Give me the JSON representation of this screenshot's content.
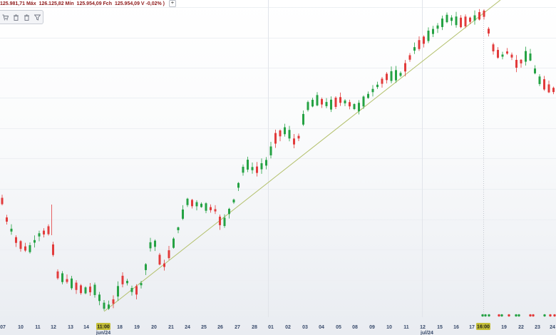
{
  "info_bar": {
    "text_1": "125.981,71 Máx",
    "text_2": "126.125,82 Mín",
    "text_3": "125.954,09 Fch",
    "text_4": "125.954,09 V -0,02% )",
    "plus_label": "+"
  },
  "toolbar": {
    "icons": [
      "cart-icon",
      "trash-icon",
      "trash-icon",
      "filter-icon"
    ]
  },
  "colors": {
    "up": "#25a244",
    "down": "#e23b3b",
    "trendline": "#b3c06b",
    "badge": "#c5bf38"
  },
  "x_axis": {
    "day_labels": [
      "07",
      "10",
      "11",
      "12",
      "13",
      "14",
      "11:00",
      "18",
      "19",
      "20",
      "21",
      "24",
      "25",
      "26",
      "27",
      "28",
      "01",
      "02",
      "03",
      "04",
      "05",
      "08",
      "09",
      "10",
      "11",
      "12",
      "15",
      "16",
      "17",
      "16:00",
      "19",
      "22",
      "23",
      "24"
    ],
    "month_labels": [
      "jun/24",
      "jul/24"
    ],
    "badge_labels": [
      "11:00",
      "16:00"
    ]
  },
  "chart_data": {
    "type": "candlestick",
    "title": "",
    "xlabel": "",
    "ylabel": "",
    "direction": [
      "down",
      "down",
      "up",
      "down",
      "down",
      "down",
      "up",
      "up",
      "up",
      "down",
      "down",
      "down",
      "down",
      "up",
      "down",
      "up",
      "down",
      "down",
      "up",
      "down",
      "up",
      "up",
      "up",
      "up",
      "down",
      "up",
      "down",
      "up",
      "up",
      "down",
      "up",
      "up",
      "up",
      "up",
      "down",
      "down",
      "down",
      "up",
      "up",
      "up",
      "up",
      "down",
      "up",
      "up",
      "up",
      "down",
      "down",
      "down",
      "up",
      "up",
      "up",
      "up",
      "up",
      "up",
      "up",
      "down",
      "up",
      "up",
      "up",
      "down",
      "down",
      "up",
      "up",
      "down",
      "down",
      "up",
      "up",
      "up",
      "up",
      "down",
      "up",
      "up",
      "down",
      "down",
      "up",
      "down",
      "up",
      "up",
      "up",
      "up",
      "up",
      "up",
      "down",
      "down",
      "up",
      "up",
      "up",
      "down",
      "down",
      "up",
      "down",
      "down",
      "up",
      "up",
      "up",
      "up",
      "up",
      "up",
      "up",
      "down",
      "down",
      "down",
      "up",
      "down",
      "down",
      "down",
      "down",
      "down",
      "up",
      "down",
      "down",
      "down",
      "down",
      "up",
      "up",
      "up",
      "up",
      "down",
      "down",
      "down",
      "down",
      "down",
      "up"
    ],
    "markers": [
      "green",
      "green",
      "green",
      "red",
      "green",
      "red",
      "green",
      "green",
      "red",
      "red",
      "green",
      "red",
      "red"
    ]
  }
}
